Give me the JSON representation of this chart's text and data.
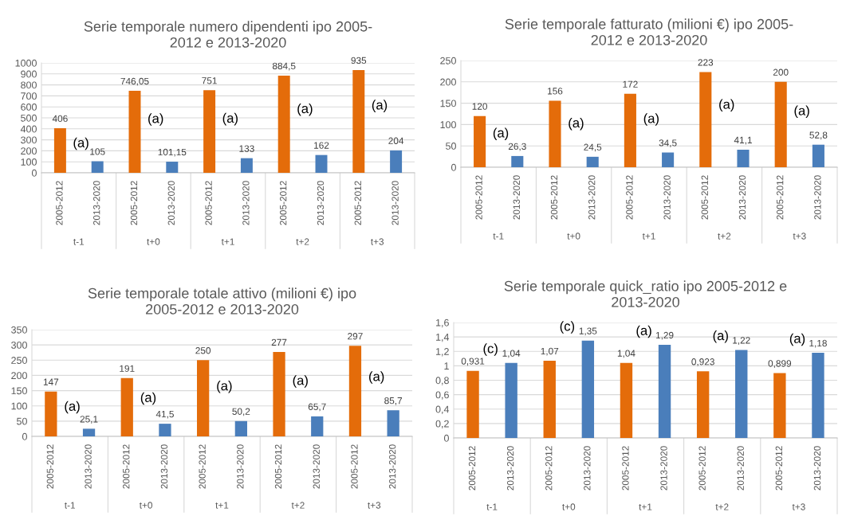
{
  "chart_data": [
    {
      "type": "bar",
      "title": "Serie temporale numero dipendenti ipo 2005-\n2012 e 2013-2020",
      "categories": [
        "2005-2012",
        "2013-2020",
        "2005-2012",
        "2013-2020",
        "2005-2012",
        "2013-2020",
        "2005-2012",
        "2013-2020",
        "2005-2012",
        "2013-2020"
      ],
      "values": [
        406,
        105,
        746.05,
        101.15,
        751,
        133,
        884.5,
        162,
        935,
        204
      ],
      "value_labels": [
        "406",
        "105",
        "746,05",
        "101,15",
        "751",
        "133",
        "884,5",
        "162",
        "935",
        "204"
      ],
      "colors": [
        "#e46c0a",
        "#4a7ebb",
        "#e46c0a",
        "#4a7ebb",
        "#e46c0a",
        "#4a7ebb",
        "#e46c0a",
        "#4a7ebb",
        "#e46c0a",
        "#4a7ebb"
      ],
      "ylim": [
        0,
        1000
      ],
      "yticks": [
        0,
        100,
        200,
        300,
        400,
        500,
        600,
        700,
        800,
        900,
        1000
      ],
      "grid": "y",
      "annotations": [
        "(a)",
        "(a)",
        "(a)",
        "(a)",
        "(a)",
        "t-1",
        "t+0",
        "t+1",
        "t+2",
        "t+3"
      ]
    },
    {
      "type": "bar",
      "title": "Serie temporale fatturato (milioni €) ipo 2005-\n2012 e 2013-2020",
      "categories": [
        "2005-2012",
        "2013-2020",
        "2005-2012",
        "2013-2020",
        "2005-2012",
        "2013-2020",
        "2005-2012",
        "2013-2020",
        "2005-2012",
        "2013-2020"
      ],
      "values": [
        120,
        26.3,
        156,
        24.5,
        172,
        34.5,
        223,
        41.1,
        200,
        52.8
      ],
      "value_labels": [
        "120",
        "26,3",
        "156",
        "24,5",
        "172",
        "34,5",
        "223",
        "41,1",
        "200",
        "52,8"
      ],
      "colors": [
        "#e46c0a",
        "#4a7ebb",
        "#e46c0a",
        "#4a7ebb",
        "#e46c0a",
        "#4a7ebb",
        "#e46c0a",
        "#4a7ebb",
        "#e46c0a",
        "#4a7ebb"
      ],
      "ylim": [
        0,
        250
      ],
      "yticks": [
        0,
        50,
        100,
        150,
        200,
        250
      ],
      "grid": "y",
      "annotations": [
        "(a)",
        "(a)",
        "(a)",
        "(a)",
        "(a)",
        "t-1",
        "t+0",
        "t+1",
        "t+2",
        "t+3"
      ]
    },
    {
      "type": "bar",
      "title": "Serie temporale totale attivo (milioni €) ipo\n2005-2012 e 2013-2020",
      "categories": [
        "2005-2012",
        "2013-2020",
        "2005-2012",
        "2013-2020",
        "2005-2012",
        "2013-2020",
        "2005-2012",
        "2013-2020",
        "2005-2012",
        "2013-2020"
      ],
      "values": [
        147,
        25.1,
        191,
        41.5,
        250,
        50.2,
        277,
        65.7,
        297,
        85.7
      ],
      "value_labels": [
        "147",
        "25,1",
        "191",
        "41,5",
        "250",
        "50,2",
        "277",
        "65,7",
        "297",
        "85,7"
      ],
      "colors": [
        "#e46c0a",
        "#4a7ebb",
        "#e46c0a",
        "#4a7ebb",
        "#e46c0a",
        "#4a7ebb",
        "#e46c0a",
        "#4a7ebb",
        "#e46c0a",
        "#4a7ebb"
      ],
      "ylim": [
        0,
        350
      ],
      "yticks": [
        0,
        50,
        100,
        150,
        200,
        250,
        300,
        350
      ],
      "grid": "y",
      "annotations": [
        "(a)",
        "(a)",
        "(a)",
        "(a)",
        "(a)",
        "t-1",
        "t+0",
        "t+1",
        "t+2",
        "t+3"
      ]
    },
    {
      "type": "bar",
      "title": "Serie temporale quick_ratio ipo 2005-2012 e\n2013-2020",
      "categories": [
        "2005-2012",
        "2013-2020",
        "2005-2012",
        "2013-2020",
        "2005-2012",
        "2013-2020",
        "2005-2012",
        "2013-2020",
        "2005-2012",
        "2013-2020"
      ],
      "values": [
        0.931,
        1.04,
        1.07,
        1.35,
        1.04,
        1.29,
        0.923,
        1.22,
        0.899,
        1.18
      ],
      "value_labels": [
        "0,931",
        "1,04",
        "1,07",
        "1,35",
        "1,04",
        "1,29",
        "0,923",
        "1,22",
        "0,899",
        "1,18"
      ],
      "colors": [
        "#e46c0a",
        "#4a7ebb",
        "#e46c0a",
        "#4a7ebb",
        "#e46c0a",
        "#4a7ebb",
        "#e46c0a",
        "#4a7ebb",
        "#e46c0a",
        "#4a7ebb"
      ],
      "ylim": [
        0,
        1.6
      ],
      "yticks": [
        0,
        {
          "value": 0.2,
          "label": "0,2"
        },
        {
          "value": 0.4,
          "label": "0,4"
        },
        {
          "value": 0.6,
          "label": "0,6"
        },
        {
          "value": 0.8,
          "label": "0,8"
        },
        1,
        {
          "value": 1.2,
          "label": "1,2"
        },
        {
          "value": 1.4,
          "label": "1,4"
        },
        {
          "value": 1.6,
          "label": "1,6"
        }
      ],
      "grid": "y",
      "annotations": [
        "(c)",
        "(c)",
        "(a)",
        "(a)",
        "(a)",
        "t-1",
        "t+0",
        "t+1",
        "t+2",
        "t+3"
      ]
    }
  ]
}
